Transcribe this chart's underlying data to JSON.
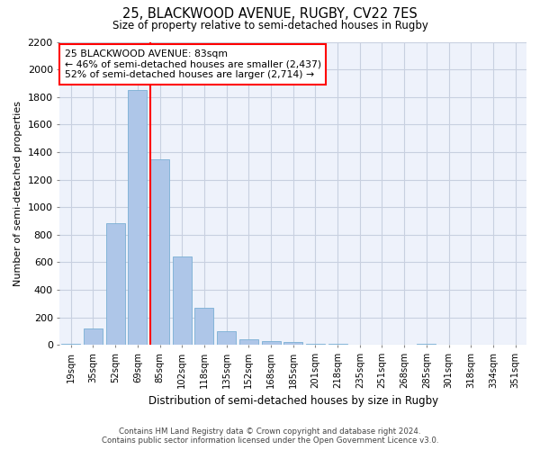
{
  "title1": "25, BLACKWOOD AVENUE, RUGBY, CV22 7ES",
  "title2": "Size of property relative to semi-detached houses in Rugby",
  "xlabel": "Distribution of semi-detached houses by size in Rugby",
  "ylabel": "Number of semi-detached properties",
  "categories": [
    "19sqm",
    "35sqm",
    "52sqm",
    "69sqm",
    "85sqm",
    "102sqm",
    "118sqm",
    "135sqm",
    "152sqm",
    "168sqm",
    "185sqm",
    "201sqm",
    "218sqm",
    "235sqm",
    "251sqm",
    "268sqm",
    "285sqm",
    "301sqm",
    "318sqm",
    "334sqm",
    "351sqm"
  ],
  "values": [
    10,
    120,
    880,
    1850,
    1350,
    640,
    270,
    100,
    40,
    30,
    20,
    10,
    10,
    0,
    0,
    0,
    10,
    0,
    0,
    0,
    0
  ],
  "bar_color": "#aec6e8",
  "bar_edge_color": "#7aafd4",
  "annotation_title": "25 BLACKWOOD AVENUE: 83sqm",
  "annotation_line1": "← 46% of semi-detached houses are smaller (2,437)",
  "annotation_line2": "52% of semi-detached houses are larger (2,714) →",
  "vline_color": "red",
  "annotation_box_color": "white",
  "annotation_box_edge_color": "red",
  "ylim": [
    0,
    2200
  ],
  "yticks": [
    0,
    200,
    400,
    600,
    800,
    1000,
    1200,
    1400,
    1600,
    1800,
    2000,
    2200
  ],
  "grid_color": "#c8d0e0",
  "footer1": "Contains HM Land Registry data © Crown copyright and database right 2024.",
  "footer2": "Contains public sector information licensed under the Open Government Licence v3.0.",
  "background_color": "#eef2fb",
  "vline_x_bin": 4,
  "vline_x_offset": -0.42
}
